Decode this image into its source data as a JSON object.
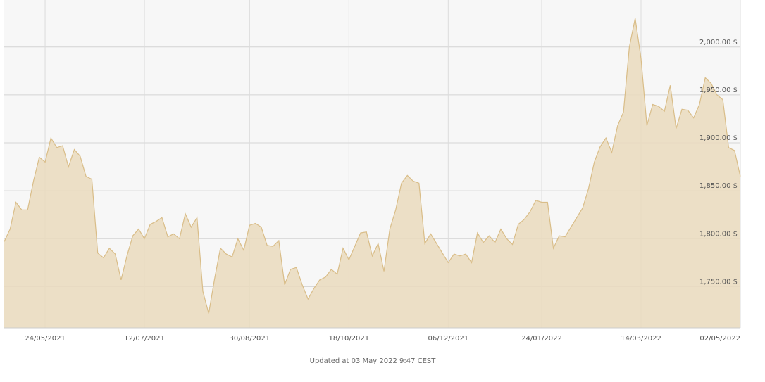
{
  "chart_data": {
    "type": "area",
    "color": "#d9bd88",
    "fill": "#eadbbd",
    "categories": [
      null,
      null,
      null,
      null,
      null,
      null,
      null,
      "24/05/2021",
      null,
      null,
      null,
      null,
      null,
      null,
      null,
      null,
      null,
      null,
      null,
      null,
      null,
      null,
      null,
      null,
      "12/07/2021",
      null,
      null,
      null,
      null,
      null,
      null,
      null,
      null,
      null,
      null,
      null,
      null,
      null,
      null,
      null,
      null,
      null,
      "30/08/2021",
      null,
      null,
      null,
      null,
      null,
      null,
      null,
      null,
      null,
      null,
      null,
      null,
      null,
      null,
      null,
      null,
      "18/10/2021",
      null,
      null,
      null,
      null,
      null,
      null,
      null,
      null,
      null,
      null,
      null,
      null,
      null,
      null,
      null,
      null,
      "06/12/2021",
      null,
      null,
      null,
      null,
      null,
      null,
      null,
      null,
      null,
      null,
      null,
      null,
      null,
      null,
      null,
      "24/01/2022",
      null,
      null,
      null,
      null,
      null,
      null,
      null,
      null,
      null,
      null,
      null,
      null,
      null,
      null,
      null,
      null,
      "14/03/2022",
      null,
      null,
      null,
      null,
      null,
      null,
      null,
      null,
      null,
      null,
      null,
      null,
      null,
      null,
      null,
      null,
      "02/05/2022"
    ],
    "values": [
      1797,
      1810,
      1838,
      1830,
      1830,
      1860,
      1885,
      1880,
      1905,
      1895,
      1897,
      1875,
      1893,
      1886,
      1865,
      1862,
      1785,
      1780,
      1790,
      1784,
      1757,
      1782,
      1803,
      1810,
      1800,
      1815,
      1818,
      1822,
      1802,
      1805,
      1800,
      1826,
      1812,
      1822,
      1745,
      1722,
      1758,
      1790,
      1784,
      1781,
      1800,
      1788,
      1814,
      1816,
      1812,
      1793,
      1792,
      1798,
      1752,
      1768,
      1770,
      1752,
      1737,
      1748,
      1757,
      1760,
      1768,
      1763,
      1790,
      1778,
      1792,
      1806,
      1807,
      1782,
      1795,
      1766,
      1810,
      1830,
      1858,
      1866,
      1860,
      1858,
      1795,
      1805,
      1795,
      1785,
      1775,
      1784,
      1782,
      1784,
      1775,
      1806,
      1796,
      1803,
      1796,
      1810,
      1800,
      1794,
      1815,
      1820,
      1828,
      1840,
      1838,
      1838,
      1790,
      1803,
      1802,
      1812,
      1822,
      1832,
      1852,
      1880,
      1896,
      1905,
      1890,
      1918,
      1932,
      2000,
      2030,
      1988,
      1918,
      1940,
      1938,
      1933,
      1960,
      1915,
      1935,
      1934,
      1926,
      1940,
      1968,
      1962,
      1950,
      1945,
      1895,
      1892,
      1865
    ],
    "ylim": [
      1707,
      2049
    ],
    "yticks": [
      {
        "value": 1750,
        "label": "1,750.00 $"
      },
      {
        "value": 1800,
        "label": "1,800.00 $"
      },
      {
        "value": 1850,
        "label": "1,850.00 $"
      },
      {
        "value": 1900,
        "label": "1,900.00 $"
      },
      {
        "value": 1950,
        "label": "1,950.00 $"
      },
      {
        "value": 2000,
        "label": "2,000.00 $"
      }
    ],
    "grid": true,
    "footnote": "Updated at 03 May 2022 9:47 CEST"
  }
}
